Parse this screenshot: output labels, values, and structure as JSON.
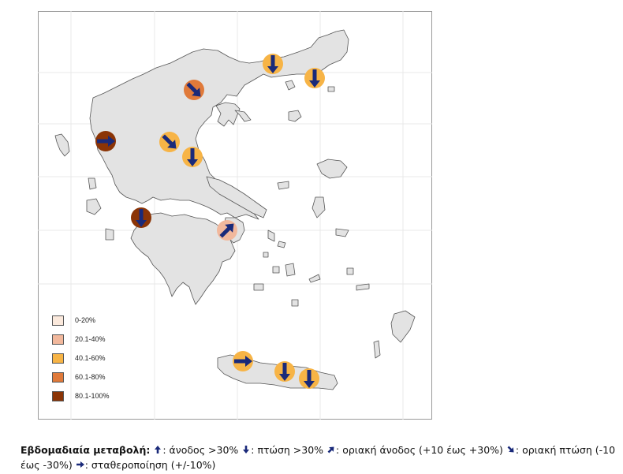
{
  "legend": {
    "items": [
      {
        "label": "0-20%",
        "color": "#fbe9dc"
      },
      {
        "label": "20.1-40%",
        "color": "#f2b89c"
      },
      {
        "label": "40.1-60%",
        "color": "#f7b446"
      },
      {
        "label": "60.1-80%",
        "color": "#e07a3a"
      },
      {
        "label": "80.1-100%",
        "color": "#8b3406"
      }
    ]
  },
  "caption": {
    "title": "Εβδομαδιαία μεταβολή:",
    "rise_label": ": άνοδος >30%",
    "fall_label": ": πτώση >30%",
    "marginal_rise_label": ": οριακή άνοδος (+10 έως +30%)",
    "marginal_fall_label": ": οριακή πτώση  (-10 έως -30%)",
    "stable_label": ":  σταθεροποίηση (+/-10%)"
  },
  "markers": [
    {
      "name": "thessaloniki",
      "color": "#e07a3a",
      "trend": "marginal-fall"
    },
    {
      "name": "kavala",
      "color": "#f7b446",
      "trend": "fall"
    },
    {
      "name": "alexandroupoli",
      "color": "#f7b446",
      "trend": "fall"
    },
    {
      "name": "ioannina",
      "color": "#8b3406",
      "trend": "stable"
    },
    {
      "name": "larisa",
      "color": "#f7b446",
      "trend": "marginal-fall"
    },
    {
      "name": "volos",
      "color": "#f7b446",
      "trend": "fall"
    },
    {
      "name": "patra",
      "color": "#8b3406",
      "trend": "fall"
    },
    {
      "name": "athens",
      "color": "#f2b89c",
      "trend": "marginal-rise"
    },
    {
      "name": "chania",
      "color": "#f7b446",
      "trend": "stable"
    },
    {
      "name": "heraklion",
      "color": "#f7b446",
      "trend": "fall"
    },
    {
      "name": "agios-nikolaos",
      "color": "#f7b446",
      "trend": "fall"
    }
  ],
  "arrow_color": "#1a2a7a"
}
